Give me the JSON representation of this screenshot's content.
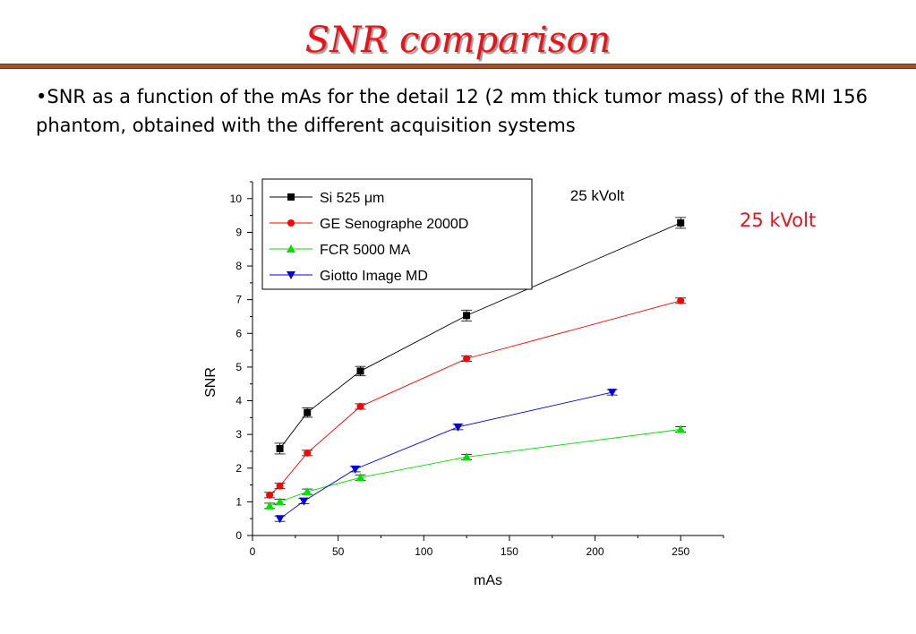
{
  "slide": {
    "title": "SNR comparison",
    "bullet": "•SNR as a function of the mAs for the detail 12 (2 mm thick tumor mass) of the RMI 156 phantom, obtained with the different acquisition systems",
    "side_label": "25 kVolt"
  },
  "chart_data": {
    "type": "line",
    "title": "",
    "annotation": "25 kVolt",
    "xlabel": "mAs",
    "ylabel": "SNR",
    "xlim": [
      0,
      275
    ],
    "ylim": [
      0,
      10.5
    ],
    "xticks": [
      0,
      50,
      100,
      150,
      200,
      250
    ],
    "yticks": [
      0,
      1,
      2,
      3,
      4,
      5,
      6,
      7,
      8,
      9,
      10
    ],
    "grid": false,
    "legend_position": "top-left",
    "series": [
      {
        "name": "Si 525 μm",
        "color": "#000000",
        "marker": "square",
        "x": [
          16,
          32,
          63,
          125,
          250
        ],
        "y": [
          2.58,
          3.65,
          4.88,
          6.53,
          9.28
        ],
        "err": [
          0.16,
          0.14,
          0.14,
          0.16,
          0.16
        ]
      },
      {
        "name": "GE Senographe 2000D",
        "color": "#ff0000",
        "marker": "circle",
        "x": [
          10,
          16,
          32,
          63,
          125,
          250
        ],
        "y": [
          1.2,
          1.47,
          2.45,
          3.83,
          5.25,
          6.97
        ],
        "err": [
          0.08,
          0.08,
          0.08,
          0.08,
          0.08,
          0.08
        ]
      },
      {
        "name": "FCR 5000 MA",
        "color": "#00dd00",
        "marker": "triangle-up",
        "x": [
          10,
          16,
          32,
          63,
          125,
          250
        ],
        "y": [
          0.88,
          1.0,
          1.3,
          1.72,
          2.33,
          3.15
        ],
        "err": [
          0.08,
          0.08,
          0.08,
          0.08,
          0.08,
          0.08
        ]
      },
      {
        "name": "Giotto Image MD",
        "color": "#0000dd",
        "marker": "triangle-down",
        "x": [
          16,
          30,
          60,
          120,
          210
        ],
        "y": [
          0.5,
          1.02,
          1.97,
          3.22,
          4.25
        ],
        "err": [
          0.08,
          0.08,
          0.08,
          0.08,
          0.08
        ]
      }
    ]
  }
}
